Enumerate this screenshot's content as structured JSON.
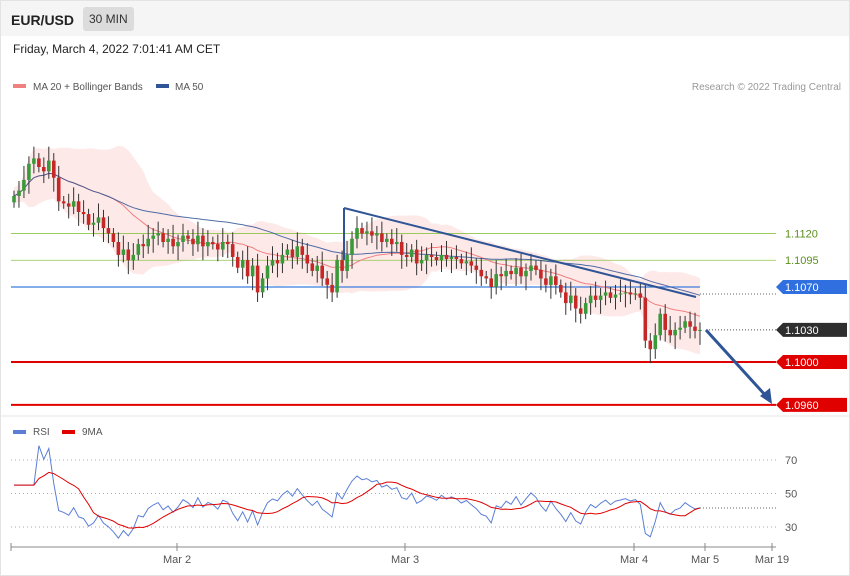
{
  "header": {
    "symbol": "EUR/USD",
    "timeframe": "30 MIN"
  },
  "datetime": "Friday, March 4, 2022 7:01:41 AM CET",
  "legend": {
    "ma20": "MA 20 + Bollinger Bands",
    "ma50": "MA 50",
    "ma20_color": "#f08080",
    "ma50_color": "#2f5597"
  },
  "credit": "Research © 2022 Trading Central",
  "rsi_legend": {
    "rsi": "RSI",
    "ma9": "9MA",
    "rsi_color": "#5b7fd6",
    "ma9_color": "#e00000"
  },
  "chart_data": [
    {
      "type": "candlestick",
      "ylim": [
        1.0955,
        1.119
      ],
      "levels": [
        {
          "label": "1.1120",
          "value": 1.112,
          "color": "#8dc44a",
          "kind": "resistance"
        },
        {
          "label": "1.1095",
          "value": 1.1095,
          "color": "#8dc44a",
          "kind": "resistance"
        },
        {
          "label": "1.1070",
          "value": 1.107,
          "color": "#3b7ddd",
          "kind": "pivot"
        },
        {
          "label": "1.1030",
          "value": 1.103,
          "color": "#333333",
          "kind": "last"
        },
        {
          "label": "1.1000",
          "value": 1.1,
          "color": "#e00000",
          "kind": "support"
        },
        {
          "label": "1.0960",
          "value": 1.096,
          "color": "#e00000",
          "kind": "support"
        }
      ],
      "x_ticks": [
        "Mar 2",
        "Mar 3",
        "Mar 4",
        "Mar 5",
        "Mar 19"
      ],
      "close": [
        1.1155,
        1.116,
        1.117,
        1.1185,
        1.119,
        1.1182,
        1.1178,
        1.1188,
        1.1172,
        1.115,
        1.1148,
        1.1145,
        1.115,
        1.114,
        1.1138,
        1.1128,
        1.113,
        1.1135,
        1.1125,
        1.112,
        1.1112,
        1.11,
        1.1105,
        1.1095,
        1.11,
        1.111,
        1.1108,
        1.1115,
        1.1118,
        1.112,
        1.1112,
        1.1115,
        1.1108,
        1.1112,
        1.1118,
        1.1115,
        1.111,
        1.1118,
        1.1108,
        1.1112,
        1.111,
        1.1105,
        1.1112,
        1.111,
        1.1098,
        1.1088,
        1.1095,
        1.108,
        1.109,
        1.1065,
        1.1078,
        1.109,
        1.1095,
        1.1092,
        1.11,
        1.1105,
        1.1098,
        1.1108,
        1.11,
        1.1092,
        1.1085,
        1.109,
        1.1078,
        1.1072,
        1.1065,
        1.1095,
        1.1085,
        1.11,
        1.1115,
        1.1125,
        1.112,
        1.1122,
        1.1118,
        1.112,
        1.1112,
        1.1115,
        1.111,
        1.1112,
        1.11,
        1.1098,
        1.1105,
        1.1092,
        1.1095,
        1.11,
        1.1098,
        1.1095,
        1.11,
        1.1096,
        1.1098,
        1.1096,
        1.1092,
        1.1094,
        1.109,
        1.1086,
        1.108,
        1.1078,
        1.107,
        1.1082,
        1.108,
        1.1085,
        1.1082,
        1.1088,
        1.108,
        1.1085,
        1.109,
        1.1086,
        1.1078,
        1.1072,
        1.108,
        1.1072,
        1.1065,
        1.1055,
        1.1062,
        1.105,
        1.1045,
        1.1055,
        1.1062,
        1.1058,
        1.1062,
        1.1065,
        1.106,
        1.1063,
        1.1064,
        1.1065,
        1.1063,
        1.1064,
        1.106,
        1.102,
        1.1012,
        1.1025,
        1.1045,
        1.103,
        1.1025,
        1.103,
        1.1032,
        1.1038,
        1.1033,
        1.1029,
        1.103
      ],
      "series": [
        {
          "name": "RSI",
          "ylim": [
            20,
            80
          ],
          "ticks": [
            70,
            50,
            30
          ]
        },
        {
          "name": "9MA"
        }
      ]
    }
  ]
}
